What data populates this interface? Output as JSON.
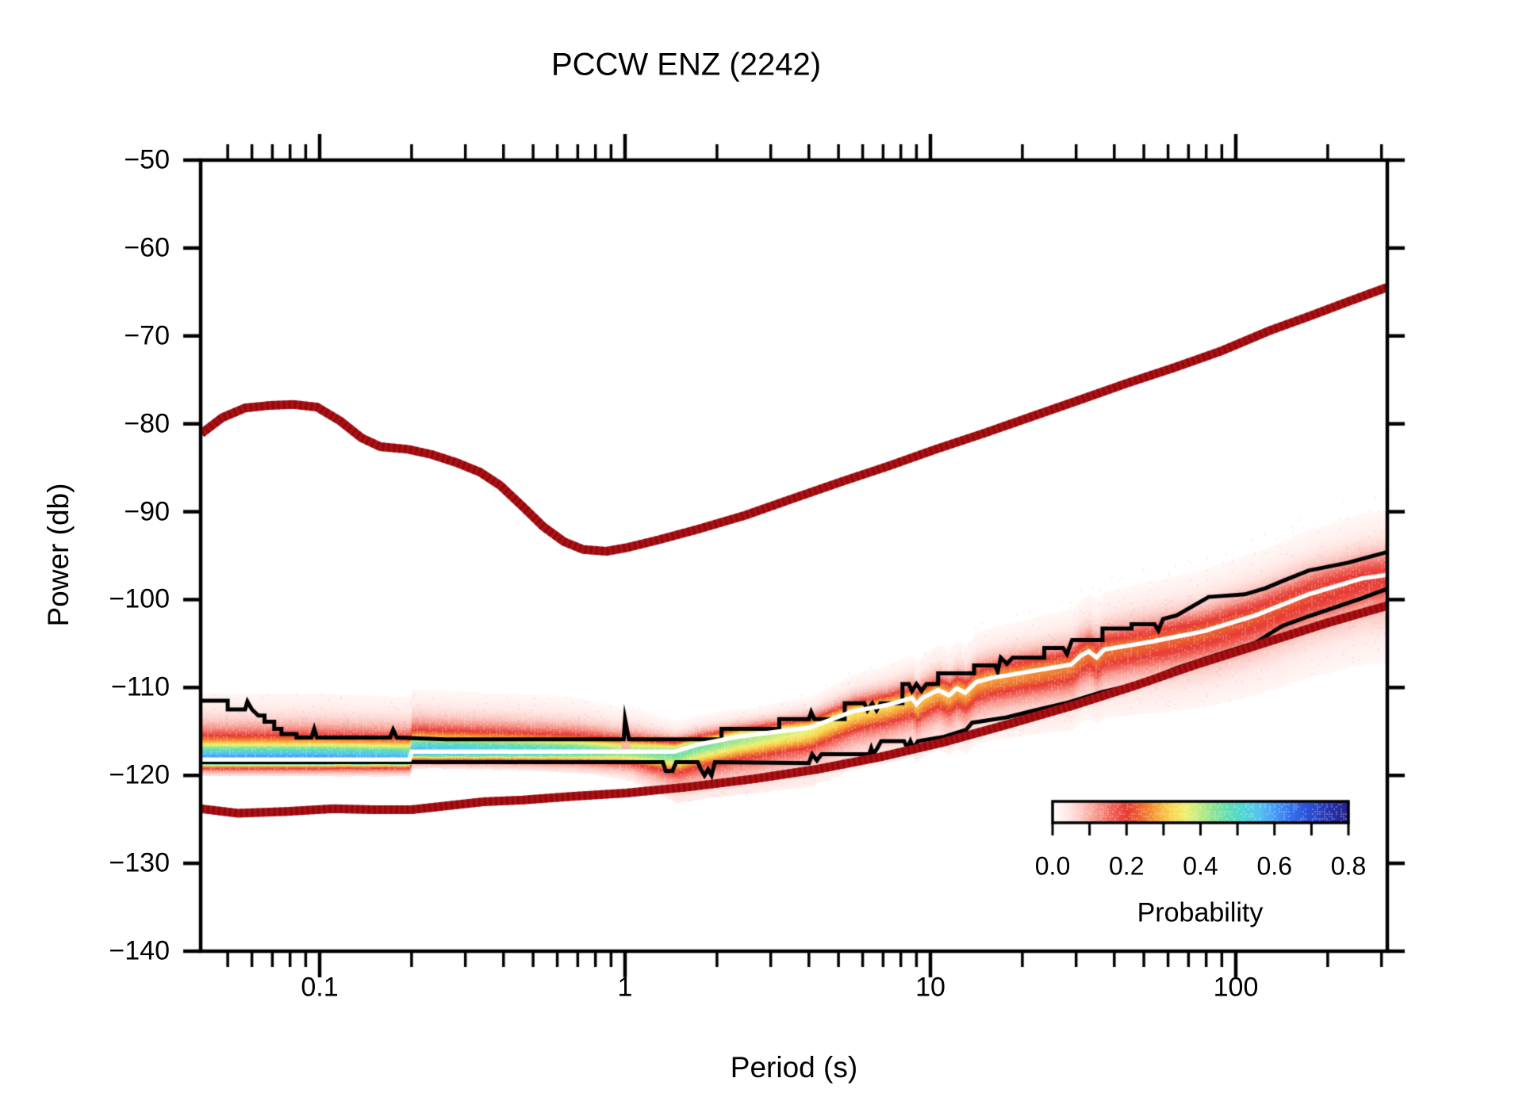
{
  "chart_data": {
    "type": "heatmap",
    "title": "PCCW ENZ (2242)",
    "xlabel": "Period (s)",
    "ylabel": "Power (db)",
    "xscale": "log",
    "xlim": [
      0.0407,
      313
    ],
    "ylim": [
      -140,
      -50
    ],
    "grid": false,
    "x_ticks": {
      "labels": [
        "0.1",
        "1",
        "10",
        "100"
      ],
      "values": [
        0.1,
        1,
        10,
        100
      ]
    },
    "y_ticks": {
      "labels": [
        "−50",
        "−60",
        "−70",
        "−80",
        "−90",
        "−100",
        "−110",
        "−120",
        "−130",
        "−140"
      ],
      "values": [
        -50,
        -60,
        -70,
        -80,
        -90,
        -100,
        -110,
        -120,
        -130,
        -140
      ]
    },
    "frame_color": "#000000",
    "colorbar": {
      "label": "Probability",
      "tick_labels": [
        "0.0",
        "0.2",
        "0.4",
        "0.6",
        "0.8"
      ],
      "tick_values": [
        0,
        0.2,
        0.4,
        0.6,
        0.8
      ],
      "minor_tick_step": 0.1,
      "range": [
        0,
        0.8
      ],
      "stops": [
        [
          0.0,
          "#ffffff"
        ],
        [
          0.04,
          "#ffe9e6"
        ],
        [
          0.08,
          "#fcc6c0"
        ],
        [
          0.12,
          "#f7988e"
        ],
        [
          0.16,
          "#f0645a"
        ],
        [
          0.2,
          "#e73a34"
        ],
        [
          0.24,
          "#ee6c30"
        ],
        [
          0.28,
          "#f6a23a"
        ],
        [
          0.32,
          "#fad44e"
        ],
        [
          0.36,
          "#eef070"
        ],
        [
          0.4,
          "#bcea82"
        ],
        [
          0.44,
          "#84e298"
        ],
        [
          0.48,
          "#5edcb8"
        ],
        [
          0.52,
          "#50d6d8"
        ],
        [
          0.56,
          "#56c2f0"
        ],
        [
          0.6,
          "#469ef5"
        ],
        [
          0.64,
          "#3676ec"
        ],
        [
          0.68,
          "#2c58dc"
        ],
        [
          0.72,
          "#2840c4"
        ],
        [
          0.76,
          "#242ea6"
        ],
        [
          0.8,
          "#282488"
        ],
        [
          0.9,
          "#2e1e76"
        ]
      ]
    },
    "series": [
      {
        "name": "high-noise-model",
        "color": "#ad1014",
        "width": 11,
        "points": [
          [
            0.041,
            -81.1
          ],
          [
            0.048,
            -79.3
          ],
          [
            0.057,
            -78.2
          ],
          [
            0.069,
            -77.9
          ],
          [
            0.082,
            -77.8
          ],
          [
            0.098,
            -78.1
          ],
          [
            0.117,
            -79.7
          ],
          [
            0.137,
            -81.6
          ],
          [
            0.158,
            -82.6
          ],
          [
            0.195,
            -82.9
          ],
          [
            0.233,
            -83.5
          ],
          [
            0.28,
            -84.4
          ],
          [
            0.335,
            -85.5
          ],
          [
            0.39,
            -87.0
          ],
          [
            0.465,
            -89.5
          ],
          [
            0.54,
            -91.7
          ],
          [
            0.63,
            -93.4
          ],
          [
            0.73,
            -94.3
          ],
          [
            0.87,
            -94.5
          ],
          [
            1.01,
            -94.1
          ],
          [
            1.29,
            -93.2
          ],
          [
            1.73,
            -92.0
          ],
          [
            2.48,
            -90.4
          ],
          [
            3.55,
            -88.5
          ],
          [
            5.1,
            -86.6
          ],
          [
            7.3,
            -84.8
          ],
          [
            10.4,
            -82.9
          ],
          [
            14.9,
            -81.1
          ],
          [
            21.4,
            -79.2
          ],
          [
            30.7,
            -77.3
          ],
          [
            43.9,
            -75.4
          ],
          [
            62.9,
            -73.6
          ],
          [
            89.9,
            -71.7
          ],
          [
            129,
            -69.4
          ],
          [
            173,
            -67.8
          ],
          [
            233,
            -66.1
          ],
          [
            312,
            -64.5
          ]
        ]
      },
      {
        "name": "low-noise-model",
        "color": "#ad1014",
        "width": 11,
        "points": [
          [
            0.041,
            -123.8
          ],
          [
            0.054,
            -124.3
          ],
          [
            0.078,
            -124.1
          ],
          [
            0.111,
            -123.8
          ],
          [
            0.149,
            -123.9
          ],
          [
            0.2,
            -123.9
          ],
          [
            0.255,
            -123.5
          ],
          [
            0.344,
            -123.0
          ],
          [
            0.465,
            -122.8
          ],
          [
            0.666,
            -122.4
          ],
          [
            1.01,
            -122.0
          ],
          [
            1.63,
            -121.3
          ],
          [
            2.64,
            -120.4
          ],
          [
            4.26,
            -119.3
          ],
          [
            6.87,
            -117.9
          ],
          [
            11.1,
            -116.2
          ],
          [
            17.9,
            -114.2
          ],
          [
            28.9,
            -112.1
          ],
          [
            46.7,
            -109.8
          ],
          [
            75.4,
            -107.3
          ],
          [
            122,
            -105.0
          ],
          [
            197,
            -102.7
          ],
          [
            312,
            -100.7
          ]
        ]
      },
      {
        "name": "upper-percentile",
        "color": "#000000",
        "width": 5,
        "points": [
          [
            0.041,
            -111.5
          ],
          [
            0.05,
            -111.5
          ],
          [
            0.05,
            -112.5
          ],
          [
            0.057,
            -112.5
          ],
          [
            0.058,
            -111.6
          ],
          [
            0.06,
            -112.5
          ],
          [
            0.063,
            -113.2
          ],
          [
            0.066,
            -113.2
          ],
          [
            0.066,
            -113.9
          ],
          [
            0.071,
            -113.9
          ],
          [
            0.071,
            -114.7
          ],
          [
            0.075,
            -114.7
          ],
          [
            0.075,
            -115.3
          ],
          [
            0.084,
            -115.3
          ],
          [
            0.084,
            -115.7
          ],
          [
            0.094,
            -115.7
          ],
          [
            0.096,
            -114.7
          ],
          [
            0.098,
            -115.7
          ],
          [
            0.17,
            -115.7
          ],
          [
            0.174,
            -114.8
          ],
          [
            0.179,
            -115.7
          ],
          [
            0.26,
            -115.9
          ],
          [
            0.99,
            -115.9
          ],
          [
            1.0,
            -113.6
          ],
          [
            1.03,
            -115.9
          ],
          [
            2.07,
            -115.9
          ],
          [
            2.07,
            -114.7
          ],
          [
            3.2,
            -114.7
          ],
          [
            3.2,
            -113.6
          ],
          [
            4.0,
            -113.6
          ],
          [
            4.07,
            -112.8
          ],
          [
            4.17,
            -113.6
          ],
          [
            5.24,
            -113.6
          ],
          [
            5.24,
            -111.8
          ],
          [
            6.08,
            -111.8
          ],
          [
            6.22,
            -112.6
          ],
          [
            6.45,
            -111.8
          ],
          [
            6.66,
            -112.6
          ],
          [
            6.86,
            -111.8
          ],
          [
            8.1,
            -111.8
          ],
          [
            8.1,
            -109.6
          ],
          [
            8.5,
            -109.6
          ],
          [
            8.7,
            -110.4
          ],
          [
            9.0,
            -109.6
          ],
          [
            9.35,
            -110.4
          ],
          [
            9.7,
            -109.6
          ],
          [
            10.6,
            -109.6
          ],
          [
            10.6,
            -108.4
          ],
          [
            13.9,
            -108.4
          ],
          [
            13.9,
            -107.5
          ],
          [
            16.3,
            -107.5
          ],
          [
            16.6,
            -108.2
          ],
          [
            17.0,
            -106.6
          ],
          [
            17.8,
            -107.3
          ],
          [
            18.6,
            -106.6
          ],
          [
            23.6,
            -106.6
          ],
          [
            23.6,
            -105.5
          ],
          [
            27.2,
            -105.5
          ],
          [
            28.0,
            -106.2
          ],
          [
            29.1,
            -104.6
          ],
          [
            36.6,
            -104.6
          ],
          [
            36.6,
            -103.3
          ],
          [
            45.6,
            -103.3
          ],
          [
            45.6,
            -102.8
          ],
          [
            54.2,
            -102.8
          ],
          [
            55.8,
            -103.5
          ],
          [
            57.8,
            -102.2
          ],
          [
            64,
            -101.8
          ],
          [
            81.5,
            -99.7
          ],
          [
            107,
            -99.4
          ],
          [
            125,
            -98.7
          ],
          [
            142,
            -97.9
          ],
          [
            173,
            -96.7
          ],
          [
            233,
            -95.8
          ],
          [
            312,
            -94.6
          ]
        ]
      },
      {
        "name": "lower-percentile",
        "color": "#000000",
        "width": 5,
        "points": [
          [
            0.041,
            -118.5
          ],
          [
            1.33,
            -118.5
          ],
          [
            1.36,
            -119.5
          ],
          [
            1.43,
            -119.5
          ],
          [
            1.47,
            -118.5
          ],
          [
            1.73,
            -118.5
          ],
          [
            1.77,
            -119.3
          ],
          [
            1.82,
            -120.0
          ],
          [
            1.87,
            -119.3
          ],
          [
            1.92,
            -120.0
          ],
          [
            1.97,
            -118.5
          ],
          [
            4.0,
            -118.6
          ],
          [
            4.1,
            -117.6
          ],
          [
            4.25,
            -118.3
          ],
          [
            4.4,
            -117.6
          ],
          [
            6.3,
            -117.6
          ],
          [
            6.4,
            -116.9
          ],
          [
            6.5,
            -117.6
          ],
          [
            6.7,
            -116.9
          ],
          [
            6.9,
            -116.1
          ],
          [
            8.2,
            -116.1
          ],
          [
            8.4,
            -116.9
          ],
          [
            8.6,
            -116.1
          ],
          [
            8.8,
            -116.9
          ],
          [
            9.1,
            -116.1
          ],
          [
            11.1,
            -115.6
          ],
          [
            13.1,
            -114.8
          ],
          [
            13.7,
            -114.0
          ],
          [
            14.4,
            -113.9
          ],
          [
            17.8,
            -113.4
          ],
          [
            21.4,
            -112.7
          ],
          [
            27.6,
            -111.8
          ],
          [
            36.6,
            -110.5
          ],
          [
            47.3,
            -109.6
          ],
          [
            64,
            -107.8
          ],
          [
            86.3,
            -106.3
          ],
          [
            116,
            -104.9
          ],
          [
            142,
            -103.0
          ],
          [
            173,
            -101.9
          ],
          [
            211,
            -100.9
          ],
          [
            256,
            -99.9
          ],
          [
            312,
            -98.8
          ]
        ]
      },
      {
        "name": "mode",
        "color": "#ffffff",
        "width": 5.5,
        "points": [
          [
            0.041,
            -118.2
          ],
          [
            0.197,
            -118.2
          ],
          [
            0.2,
            -117.3
          ],
          [
            1.45,
            -117.3
          ],
          [
            1.73,
            -116.5
          ],
          [
            2.34,
            -115.6
          ],
          [
            3.2,
            -115.0
          ],
          [
            4.0,
            -114.6
          ],
          [
            5.6,
            -112.7
          ],
          [
            7.2,
            -112.0
          ],
          [
            8.7,
            -111.2
          ],
          [
            9.0,
            -111.9
          ],
          [
            9.4,
            -111.2
          ],
          [
            10.6,
            -110.3
          ],
          [
            11.5,
            -110.9
          ],
          [
            12.2,
            -110.1
          ],
          [
            13.0,
            -110.6
          ],
          [
            14.1,
            -109.4
          ],
          [
            15.9,
            -108.9
          ],
          [
            28.9,
            -107.4
          ],
          [
            31,
            -106.4
          ],
          [
            33,
            -105.9
          ],
          [
            35,
            -106.6
          ],
          [
            37,
            -105.7
          ],
          [
            45,
            -105.2
          ],
          [
            52.5,
            -104.8
          ],
          [
            78.5,
            -103.6
          ],
          [
            116,
            -101.8
          ],
          [
            173,
            -99.4
          ],
          [
            258,
            -97.6
          ],
          [
            312,
            -97.2
          ]
        ]
      }
    ],
    "band": {
      "description": "PPSD probability field: [period_s, peak_probability, sigma_above_db, sigma_below_db]",
      "stations": [
        [
          0.041,
          0.62,
          1.7,
          0.55
        ],
        [
          0.1,
          0.62,
          1.7,
          0.55
        ],
        [
          0.2,
          0.6,
          1.6,
          0.55
        ],
        [
          0.4,
          0.55,
          1.5,
          0.6
        ],
        [
          0.7,
          0.5,
          1.4,
          0.7
        ],
        [
          0.95,
          0.44,
          1.2,
          0.9
        ],
        [
          1.05,
          0.44,
          1.2,
          1.0
        ],
        [
          1.5,
          0.47,
          0.8,
          1.8
        ],
        [
          2.5,
          0.42,
          0.75,
          2.0
        ],
        [
          4,
          0.36,
          0.9,
          2.0
        ],
        [
          6,
          0.33,
          1.1,
          2.0
        ],
        [
          9,
          0.3,
          1.3,
          2.0
        ],
        [
          14,
          0.28,
          1.5,
          2.1
        ],
        [
          25,
          0.26,
          1.7,
          2.2
        ],
        [
          45,
          0.24,
          1.9,
          2.4
        ],
        [
          80,
          0.23,
          2.0,
          2.6
        ],
        [
          150,
          0.22,
          2.1,
          2.8
        ],
        [
          312,
          0.2,
          2.2,
          3.0
        ]
      ]
    }
  }
}
